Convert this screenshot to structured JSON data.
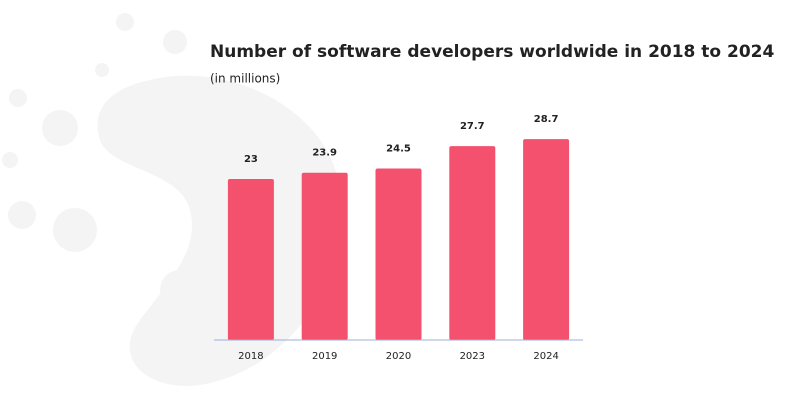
{
  "chart_data": {
    "type": "bar",
    "title": "Number of software developers worldwide in 2018 to 2024",
    "subtitle": "(in millions)",
    "categories": [
      "2018",
      "2019",
      "2020",
      "2023",
      "2024"
    ],
    "values": [
      23,
      23.9,
      24.5,
      27.7,
      28.7
    ],
    "color": "#f4516f",
    "ylim": [
      0,
      30
    ]
  }
}
